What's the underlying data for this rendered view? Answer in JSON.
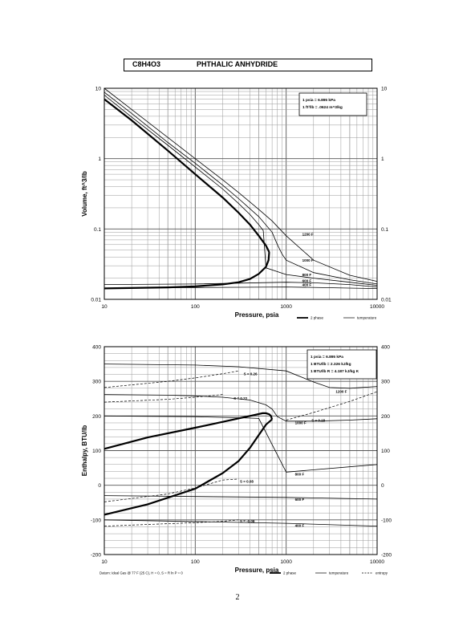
{
  "header": {
    "formula": "C8H4O3",
    "name": "PHTHALIC ANHYDRIDE"
  },
  "page_number": "2",
  "chart_data": [
    {
      "type": "line",
      "xlabel": "Pressure,  psia",
      "ylabel": "Volume, ft^3/lb",
      "x_scale": "log",
      "y_scale": "log",
      "xlim": [
        10,
        10000
      ],
      "ylim": [
        0.01,
        10
      ],
      "x_ticks": [
        "10",
        "100",
        "1000",
        "10000"
      ],
      "y_ticks": [
        "0.01",
        "0.1",
        "1",
        "10"
      ],
      "y_ticks_right": [
        "0.01",
        "0.1",
        "1",
        "10"
      ],
      "notes": [
        "1 psia  =  6.895 kPa",
        "1 ft^3/lb  =  .0624 m^3/kg"
      ],
      "legend": [
        {
          "label": "2 phase",
          "style": "thick"
        },
        {
          "label": "temperature",
          "style": "thin"
        }
      ],
      "series": [
        {
          "kind": "2 phase",
          "part": "vapor",
          "points": [
            [
              10,
              7.0
            ],
            [
              20,
              3.5
            ],
            [
              50,
              1.3
            ],
            [
              100,
              0.6
            ],
            [
              200,
              0.28
            ],
            [
              300,
              0.17
            ],
            [
              400,
              0.115
            ],
            [
              500,
              0.08
            ],
            [
              600,
              0.058
            ],
            [
              650,
              0.047
            ]
          ]
        },
        {
          "kind": "2 phase",
          "part": "liquid",
          "points": [
            [
              650,
              0.047
            ],
            [
              640,
              0.036
            ],
            [
              600,
              0.029
            ],
            [
              500,
              0.023
            ],
            [
              400,
              0.0195
            ],
            [
              300,
              0.0175
            ],
            [
              200,
              0.0163
            ],
            [
              100,
              0.0153
            ],
            [
              50,
              0.0148
            ],
            [
              10,
              0.0143
            ]
          ]
        },
        {
          "kind": "temperature",
          "label": "1200 F",
          "points": [
            [
              10,
              10.0
            ],
            [
              20,
              5.0
            ],
            [
              50,
              2.0
            ],
            [
              100,
              1.0
            ],
            [
              200,
              0.5
            ],
            [
              300,
              0.33
            ],
            [
              500,
              0.19
            ],
            [
              700,
              0.13
            ],
            [
              1000,
              0.08
            ],
            [
              2000,
              0.036
            ],
            [
              5000,
              0.022
            ],
            [
              10000,
              0.018
            ]
          ]
        },
        {
          "kind": "temperature",
          "label": "1000 F",
          "points": [
            [
              10,
              8.8
            ],
            [
              20,
              4.4
            ],
            [
              50,
              1.7
            ],
            [
              100,
              0.86
            ],
            [
              200,
              0.42
            ],
            [
              300,
              0.27
            ],
            [
              500,
              0.15
            ],
            [
              700,
              0.09
            ],
            [
              800,
              0.06
            ],
            [
              900,
              0.044
            ],
            [
              1000,
              0.036
            ],
            [
              2000,
              0.024
            ],
            [
              5000,
              0.019
            ],
            [
              10000,
              0.0165
            ]
          ]
        },
        {
          "kind": "temperature",
          "label": "800 F",
          "points": [
            [
              10,
              8.0
            ],
            [
              20,
              3.9
            ],
            [
              50,
              1.55
            ],
            [
              100,
              0.76
            ],
            [
              200,
              0.37
            ],
            [
              300,
              0.23
            ],
            [
              400,
              0.16
            ],
            [
              500,
              0.115
            ],
            [
              560,
              0.095
            ],
            [
              600,
              0.028
            ],
            [
              1000,
              0.0225
            ],
            [
              2000,
              0.02
            ],
            [
              5000,
              0.0175
            ],
            [
              10000,
              0.0158
            ]
          ]
        },
        {
          "kind": "temperature",
          "label": "600 F",
          "points": [
            [
              10,
              0.0162
            ],
            [
              100,
              0.0165
            ],
            [
              1000,
              0.0175
            ],
            [
              2000,
              0.0172
            ],
            [
              5000,
              0.0162
            ],
            [
              10000,
              0.015
            ]
          ]
        },
        {
          "kind": "temperature",
          "label": "400 F",
          "points": [
            [
              10,
              0.0145
            ],
            [
              100,
              0.0147
            ],
            [
              1000,
              0.015
            ],
            [
              10000,
              0.0142
            ]
          ]
        }
      ]
    },
    {
      "type": "line",
      "xlabel": "Pressure,  psia",
      "ylabel": "Enthalpy, BTU/lb",
      "x_scale": "log",
      "y_scale": "linear",
      "xlim": [
        10,
        10000
      ],
      "ylim": [
        -200,
        400
      ],
      "x_ticks": [
        "10",
        "100",
        "1000",
        "10000"
      ],
      "y_ticks": [
        "-200",
        "-100",
        "0",
        "100",
        "200",
        "300",
        "400"
      ],
      "y_ticks_right": [
        "-200",
        "-100",
        "0",
        "100",
        "200",
        "300",
        "400"
      ],
      "notes": [
        "1 psia  =  6.895 kPa",
        "1 BTU/lb  =  2.326 kJ/kg",
        "1 BTU/lb R  =  4.187 kJ/kg K"
      ],
      "datum": "Datum: Ideal Gas @ 77 F (25 C),  H = 0,  S = R ln P = 0",
      "legend": [
        {
          "label": "2 phase",
          "style": "thick"
        },
        {
          "label": "temperature",
          "style": "thin"
        },
        {
          "label": "entropy",
          "style": "dashed"
        }
      ],
      "series": [
        {
          "kind": "2 phase",
          "part": "vapor",
          "points": [
            [
              10,
              105
            ],
            [
              30,
              138
            ],
            [
              100,
              166
            ],
            [
              200,
              183
            ],
            [
              400,
              200
            ],
            [
              550,
              208
            ],
            [
              600,
              208
            ],
            [
              650,
              205
            ],
            [
              680,
              200
            ],
            [
              700,
              190
            ]
          ]
        },
        {
          "kind": "2 phase",
          "part": "liquid",
          "points": [
            [
              10,
              -85
            ],
            [
              30,
              -55
            ],
            [
              100,
              -10
            ],
            [
              200,
              35
            ],
            [
              300,
              70
            ],
            [
              400,
              108
            ],
            [
              500,
              145
            ],
            [
              600,
              175
            ],
            [
              700,
              190
            ]
          ]
        },
        {
          "kind": "temperature",
          "label": "1200 F",
          "points": [
            [
              10,
              350
            ],
            [
              100,
              347
            ],
            [
              300,
              342
            ],
            [
              1000,
              330
            ],
            [
              2000,
              298
            ],
            [
              3000,
              282
            ],
            [
              5000,
              280
            ],
            [
              10000,
              285
            ]
          ]
        },
        {
          "kind": "temperature",
          "label": "1000 F",
          "points": [
            [
              10,
              262
            ],
            [
              50,
              260
            ],
            [
              100,
              258
            ],
            [
              200,
              254
            ],
            [
              400,
              246
            ],
            [
              600,
              232
            ],
            [
              700,
              220
            ],
            [
              800,
              198
            ],
            [
              1000,
              185
            ],
            [
              2000,
              185
            ],
            [
              5000,
              188
            ],
            [
              10000,
              192
            ]
          ]
        },
        {
          "kind": "temperature",
          "label": "800 F",
          "points": [
            [
              10,
              200
            ],
            [
              100,
              198
            ],
            [
              200,
              196
            ],
            [
              300,
              195
            ],
            [
              500,
              193
            ],
            [
              1000,
              38
            ],
            [
              10000,
              60
            ]
          ]
        },
        {
          "kind": "temperature",
          "label": "600 F",
          "points": [
            [
              10,
              -30
            ],
            [
              1000,
              -35
            ],
            [
              10000,
              -40
            ]
          ]
        },
        {
          "kind": "temperature",
          "label": "400 F",
          "points": [
            [
              10,
              -100
            ],
            [
              1000,
              -110
            ],
            [
              10000,
              -118
            ]
          ]
        },
        {
          "kind": "entropy",
          "label": "S = 0.26",
          "points": [
            [
              10,
              282
            ],
            [
              50,
              300
            ],
            [
              100,
              310
            ],
            [
              200,
              322
            ],
            [
              300,
              330
            ]
          ]
        },
        {
          "kind": "entropy",
          "label": "S = 0.22",
          "points": [
            [
              10,
              240
            ],
            [
              50,
              248
            ],
            [
              100,
              254
            ],
            [
              200,
              262
            ]
          ]
        },
        {
          "kind": "entropy",
          "label": "S = 0.18",
          "points": [
            [
              1000,
              188
            ],
            [
              2000,
              210
            ],
            [
              5000,
              242
            ],
            [
              10000,
              270
            ]
          ]
        },
        {
          "kind": "entropy",
          "label": "S = 0.08",
          "points": [
            [
              10,
              -48
            ],
            [
              50,
              -25
            ],
            [
              100,
              -8
            ],
            [
              200,
              15
            ],
            [
              300,
              18
            ]
          ]
        },
        {
          "kind": "entropy",
          "label": "S = -0.08",
          "points": [
            [
              10,
              -118
            ],
            [
              100,
              -108
            ],
            [
              200,
              -104
            ],
            [
              300,
              -100
            ]
          ]
        }
      ]
    }
  ]
}
